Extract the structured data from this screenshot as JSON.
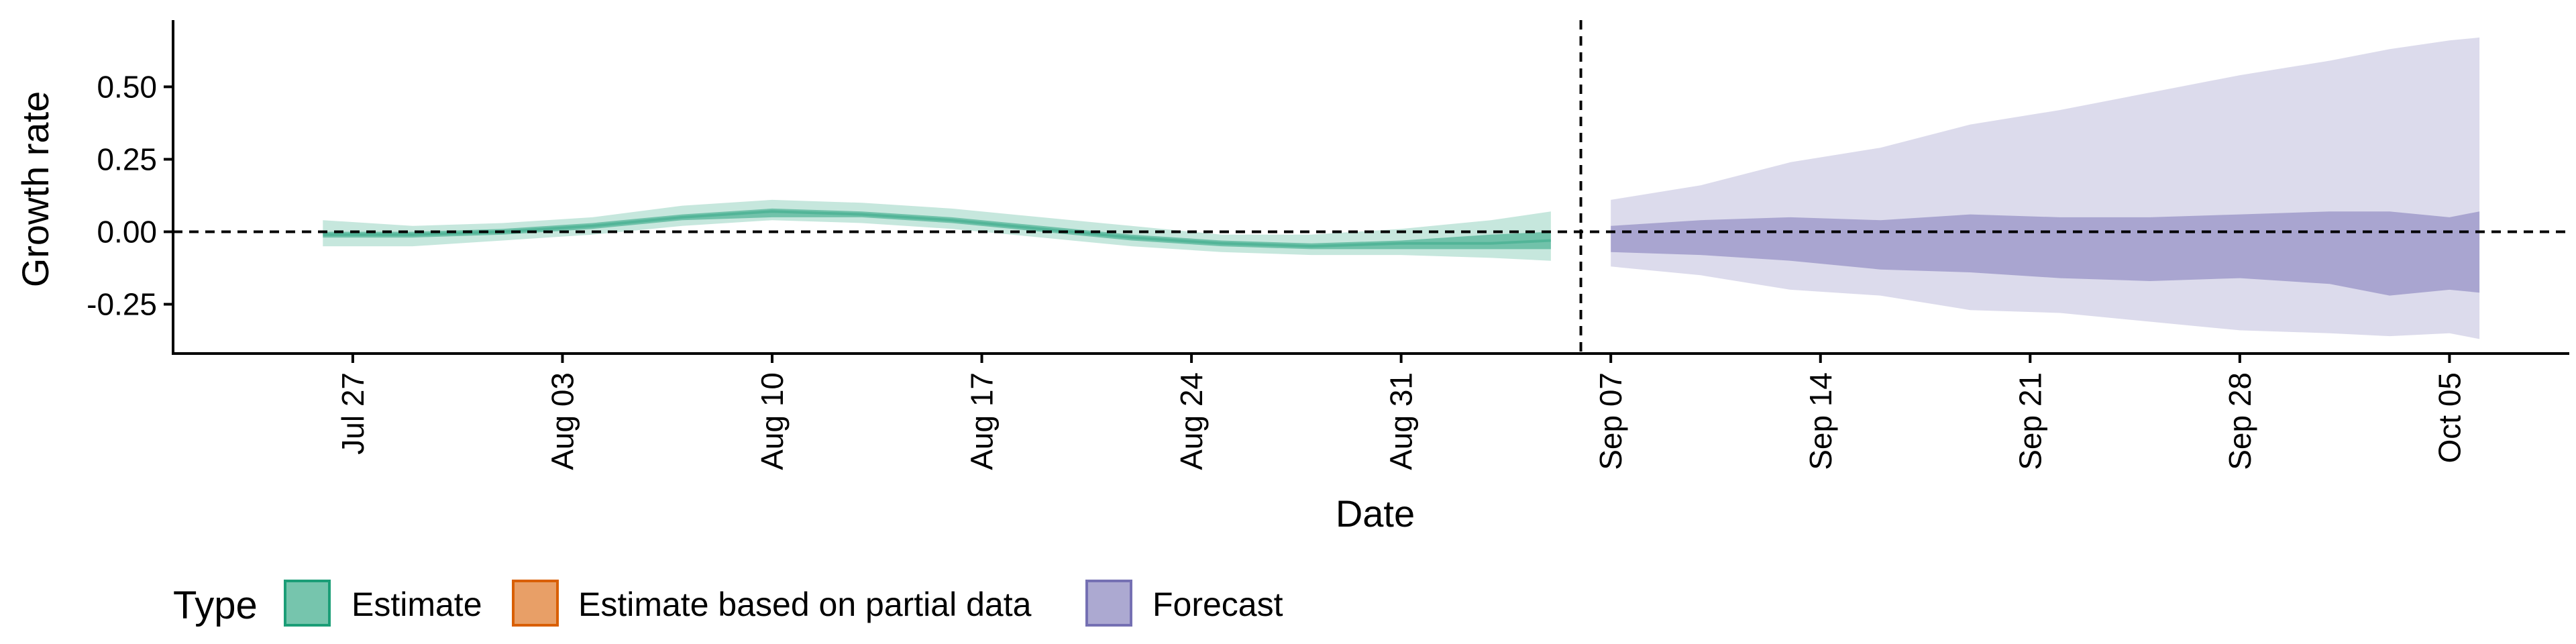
{
  "chart_data": {
    "type": "area",
    "xlabel": "Date",
    "ylabel": "Growth rate",
    "x_range": [
      "2020-07-21",
      "2020-10-09"
    ],
    "ylim": [
      -0.42,
      0.73
    ],
    "x_ticks": [
      "2020-07-27",
      "2020-08-03",
      "2020-08-10",
      "2020-08-17",
      "2020-08-24",
      "2020-08-31",
      "2020-09-07",
      "2020-09-14",
      "2020-09-21",
      "2020-09-28",
      "2020-10-05"
    ],
    "x_tick_labels": [
      "Jul 27",
      "Aug 03",
      "Aug 10",
      "Aug 17",
      "Aug 24",
      "Aug 31",
      "Sep 07",
      "Sep 14",
      "Sep 21",
      "Sep 28",
      "Oct 05"
    ],
    "y_ticks": [
      0.5,
      0.25,
      0.0,
      -0.25
    ],
    "y_tick_labels": [
      "0.50",
      "0.25",
      "0.00",
      "-0.25"
    ],
    "reference_hline": 0,
    "reference_vline": "2020-09-06",
    "legend": {
      "title": "Type",
      "position": "bottom",
      "items": [
        {
          "label": "Estimate",
          "color": "#1B9E77"
        },
        {
          "label": "Estimate based on partial data",
          "color": "#D95F02"
        },
        {
          "label": "Forecast",
          "color": "#7570B3"
        }
      ]
    },
    "series": [
      {
        "name": "Estimate",
        "color": "#1B9E77",
        "x": [
          "2020-07-26",
          "2020-07-29",
          "2020-08-01",
          "2020-08-04",
          "2020-08-07",
          "2020-08-10",
          "2020-08-13",
          "2020-08-16",
          "2020-08-19",
          "2020-08-22",
          "2020-08-25",
          "2020-08-28",
          "2020-08-31",
          "2020-09-03",
          "2020-09-05"
        ],
        "median": [
          -0.01,
          -0.01,
          0.0,
          0.02,
          0.05,
          0.07,
          0.06,
          0.04,
          0.01,
          -0.02,
          -0.04,
          -0.05,
          -0.04,
          -0.04,
          -0.03
        ],
        "lower_50": [
          -0.02,
          -0.02,
          -0.01,
          0.01,
          0.04,
          0.05,
          0.05,
          0.03,
          0.0,
          -0.03,
          -0.05,
          -0.06,
          -0.06,
          -0.06,
          -0.06
        ],
        "upper_50": [
          0.0,
          0.0,
          0.01,
          0.03,
          0.06,
          0.08,
          0.07,
          0.05,
          0.02,
          -0.01,
          -0.03,
          -0.04,
          -0.03,
          -0.01,
          0.0
        ],
        "lower_90": [
          -0.05,
          -0.05,
          -0.03,
          -0.01,
          0.02,
          0.04,
          0.03,
          0.01,
          -0.02,
          -0.05,
          -0.07,
          -0.08,
          -0.08,
          -0.09,
          -0.1
        ],
        "upper_90": [
          0.04,
          0.02,
          0.03,
          0.05,
          0.09,
          0.11,
          0.1,
          0.08,
          0.05,
          0.02,
          -0.01,
          -0.01,
          0.01,
          0.04,
          0.07
        ]
      },
      {
        "name": "Forecast",
        "color": "#7570B3",
        "x": [
          "2020-09-07",
          "2020-09-10",
          "2020-09-13",
          "2020-09-16",
          "2020-09-19",
          "2020-09-22",
          "2020-09-25",
          "2020-09-28",
          "2020-10-01",
          "2020-10-03",
          "2020-10-05",
          "2020-10-06"
        ],
        "lower_50": [
          -0.07,
          -0.08,
          -0.1,
          -0.13,
          -0.14,
          -0.16,
          -0.17,
          -0.16,
          -0.18,
          -0.22,
          -0.2,
          -0.21
        ],
        "upper_50": [
          0.02,
          0.04,
          0.05,
          0.04,
          0.06,
          0.05,
          0.05,
          0.06,
          0.07,
          0.07,
          0.05,
          0.07
        ],
        "lower_90": [
          -0.12,
          -0.15,
          -0.2,
          -0.22,
          -0.27,
          -0.28,
          -0.31,
          -0.34,
          -0.35,
          -0.36,
          -0.35,
          -0.37
        ],
        "upper_90": [
          0.11,
          0.16,
          0.24,
          0.29,
          0.37,
          0.42,
          0.48,
          0.54,
          0.59,
          0.63,
          0.66,
          0.67
        ]
      }
    ]
  }
}
